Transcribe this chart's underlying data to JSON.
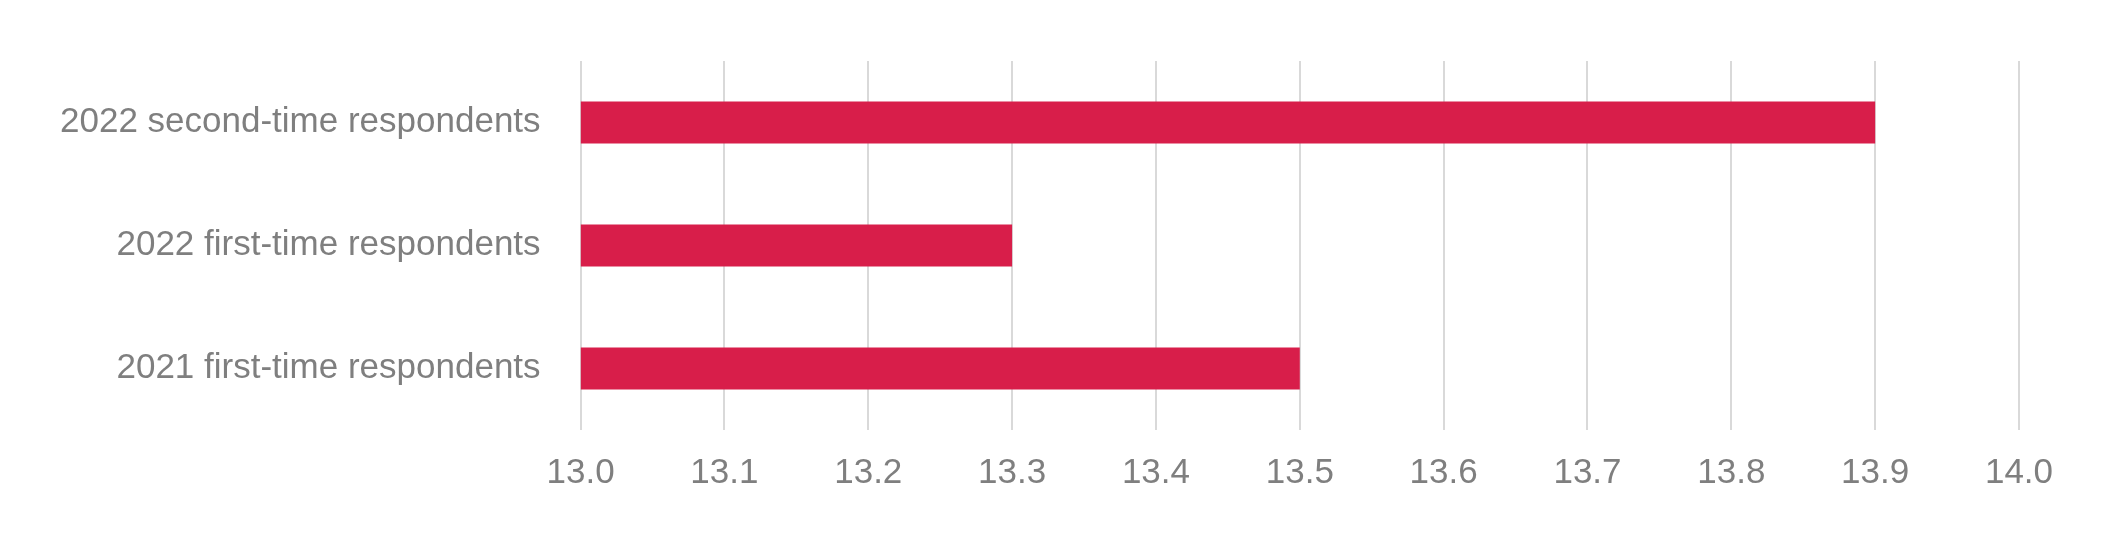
{
  "chart_data": {
    "type": "bar",
    "orientation": "horizontal",
    "categories": [
      "2022 second-time respondents",
      "2022 first-time respondents",
      "2021 first-time respondents"
    ],
    "values": [
      13.9,
      13.3,
      13.5
    ],
    "color": "#d81e4a",
    "xlim": [
      13.0,
      14.0
    ],
    "xticks": [
      {
        "value": 13.0,
        "label": "13.0"
      },
      {
        "value": 13.1,
        "label": "13.1"
      },
      {
        "value": 13.2,
        "label": "13.2"
      },
      {
        "value": 13.3,
        "label": "13.3"
      },
      {
        "value": 13.4,
        "label": "13.4"
      },
      {
        "value": 13.5,
        "label": "13.5"
      },
      {
        "value": 13.6,
        "label": "13.6"
      },
      {
        "value": 13.7,
        "label": "13.7"
      },
      {
        "value": 13.8,
        "label": "13.8"
      },
      {
        "value": 13.9,
        "label": "13.9"
      },
      {
        "value": 14.0,
        "label": "14.0"
      }
    ],
    "grid": "x",
    "legend": false
  }
}
